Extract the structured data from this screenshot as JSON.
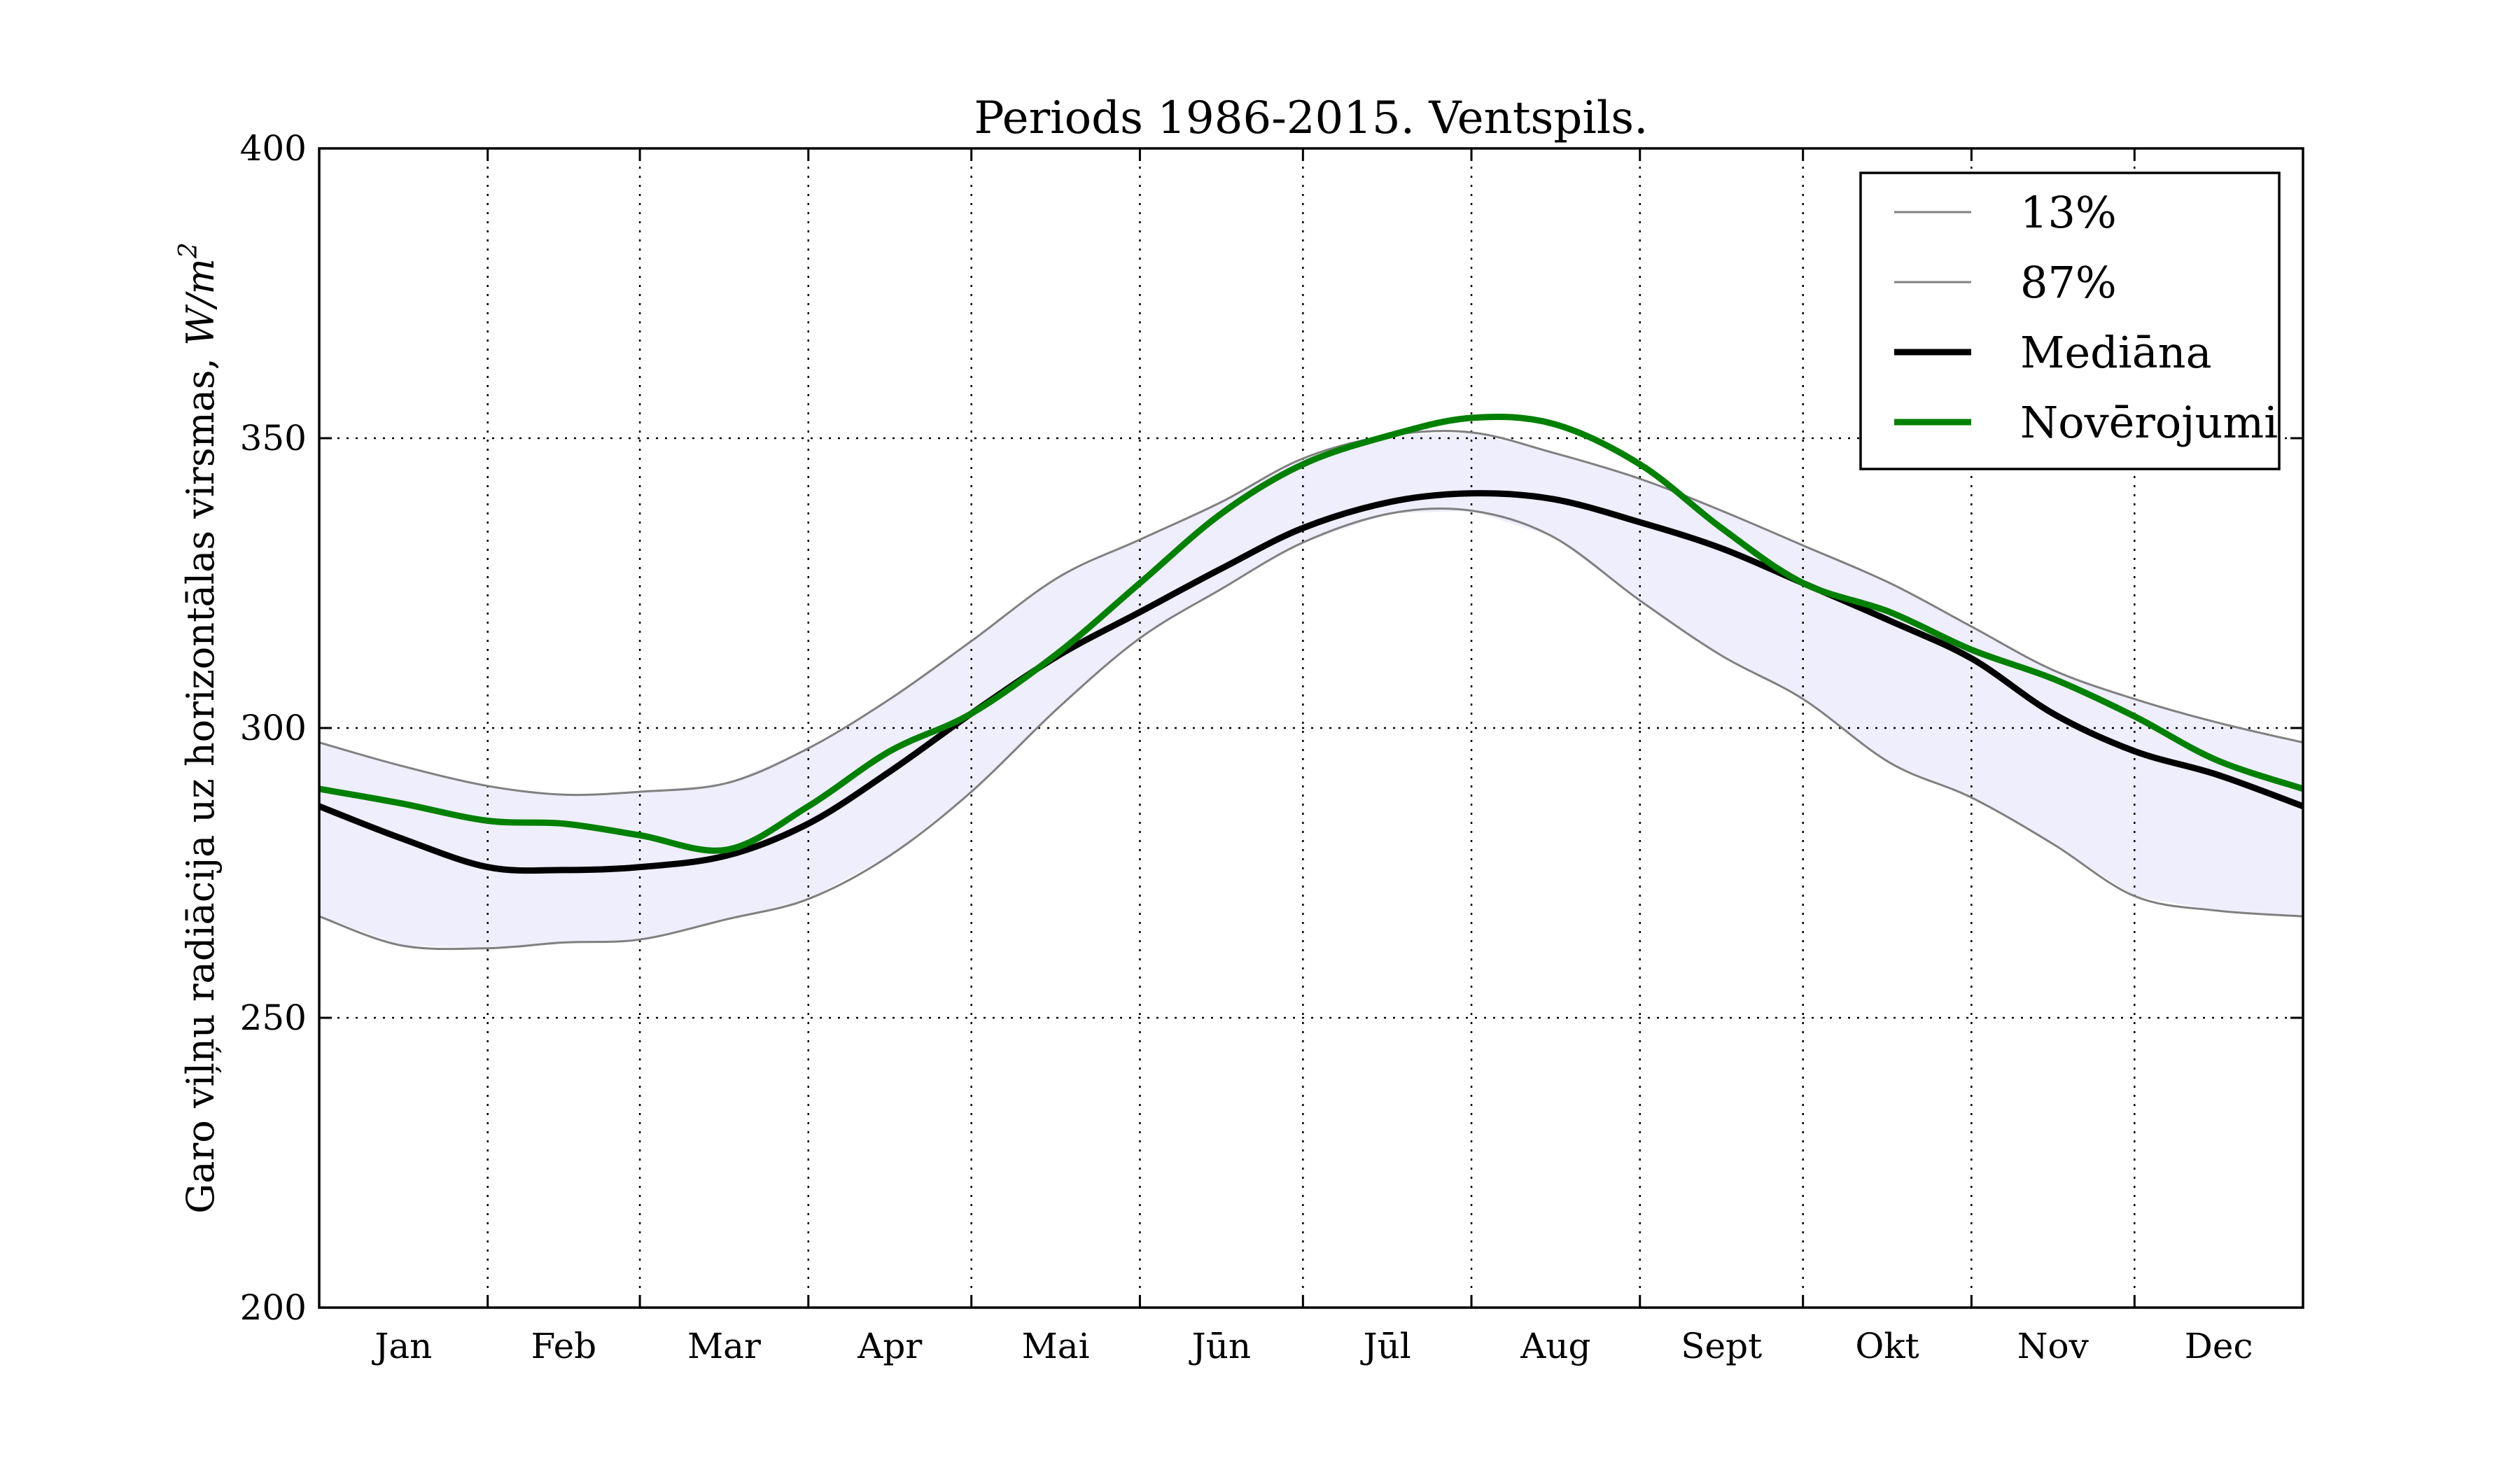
{
  "chart_data": {
    "type": "line",
    "title": "Periods 1986-2015. Ventspils.",
    "xlabel": "",
    "ylabel": "Garo viļņu radiācija uz horizontālas virsmas, W/m²",
    "ylim": [
      200,
      400
    ],
    "yticks": [
      200,
      250,
      300,
      350,
      400
    ],
    "xlim": [
      1,
      366
    ],
    "grid": true,
    "legend_position": "top-right",
    "month_labels": [
      "Jan",
      "Feb",
      "Mar",
      "Apr",
      "Mai",
      "Jūn",
      "Jūl",
      "Aug",
      "Sept",
      "Okt",
      "Nov",
      "Dec"
    ],
    "x": [
      1,
      16,
      32,
      46,
      60,
      76,
      91,
      106,
      121,
      137,
      152,
      167,
      182,
      198,
      213,
      228,
      244,
      259,
      274,
      290,
      305,
      320,
      335,
      350,
      366
    ],
    "band_fill_color": "#eeeefc",
    "series": [
      {
        "name": "13%",
        "color": "#808080",
        "width": 3,
        "values": [
          267.5,
          262.5,
          262.0,
          263.0,
          263.5,
          267.0,
          270.5,
          278.0,
          289.0,
          303.5,
          315.5,
          324.0,
          332.0,
          337.0,
          337.5,
          333.0,
          322.0,
          312.5,
          305.0,
          294.0,
          288.0,
          280.0,
          271.0,
          268.5,
          267.5
        ]
      },
      {
        "name": "87%",
        "color": "#808080",
        "width": 3,
        "values": [
          297.5,
          293.5,
          290.0,
          288.5,
          289.0,
          290.5,
          296.5,
          305.0,
          315.0,
          326.0,
          332.5,
          339.0,
          346.5,
          350.5,
          351.0,
          347.5,
          343.0,
          337.5,
          331.5,
          325.0,
          317.5,
          310.0,
          305.0,
          301.0,
          297.5
        ]
      },
      {
        "name": "Mediāna",
        "color": "#000000",
        "width": 9,
        "values": [
          286.5,
          281.0,
          276.0,
          275.5,
          276.0,
          278.0,
          283.5,
          292.5,
          302.5,
          312.5,
          320.0,
          327.5,
          334.5,
          339.0,
          340.5,
          339.5,
          335.5,
          331.0,
          325.0,
          318.5,
          312.0,
          302.5,
          296.0,
          292.0,
          286.5
        ]
      },
      {
        "name": "Novērojumi",
        "color": "#008000",
        "width": 9,
        "values": [
          289.5,
          287.0,
          284.0,
          283.5,
          281.5,
          279.0,
          286.5,
          296.0,
          302.5,
          313.0,
          325.0,
          337.0,
          345.5,
          350.5,
          353.5,
          352.5,
          345.5,
          334.5,
          325.0,
          320.0,
          313.5,
          308.5,
          302.0,
          294.5,
          289.5
        ]
      }
    ]
  }
}
